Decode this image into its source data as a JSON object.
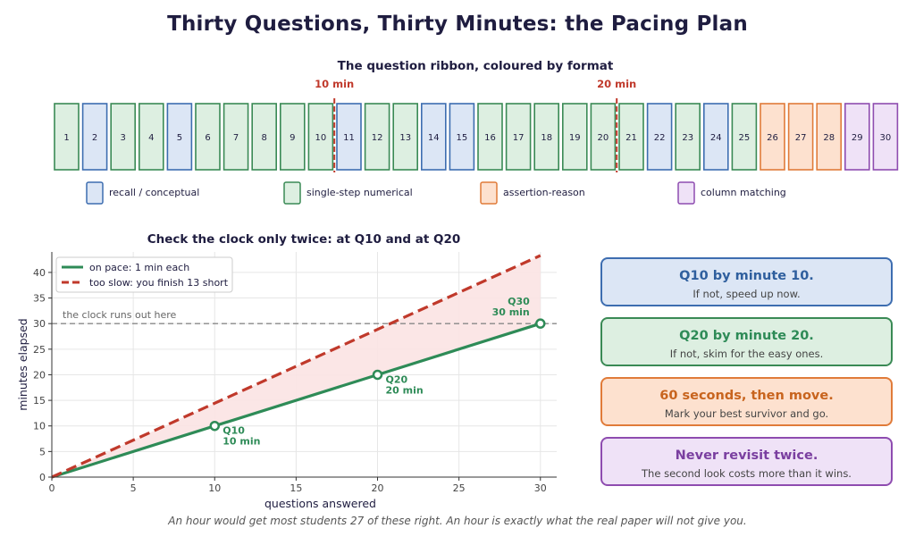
{
  "title": "Thirty Questions, Thirty Minutes: the Pacing Plan",
  "ribbon": {
    "title": "The question ribbon, coloured by format",
    "questions": [
      {
        "label": "1",
        "format": "numerical"
      },
      {
        "label": "2",
        "format": "recall"
      },
      {
        "label": "3",
        "format": "numerical"
      },
      {
        "label": "4",
        "format": "numerical"
      },
      {
        "label": "5",
        "format": "recall"
      },
      {
        "label": "6",
        "format": "numerical"
      },
      {
        "label": "7",
        "format": "numerical"
      },
      {
        "label": "8",
        "format": "numerical"
      },
      {
        "label": "9",
        "format": "numerical"
      },
      {
        "label": "10",
        "format": "numerical"
      },
      {
        "label": "11",
        "format": "recall"
      },
      {
        "label": "12",
        "format": "numerical"
      },
      {
        "label": "13",
        "format": "numerical"
      },
      {
        "label": "14",
        "format": "recall"
      },
      {
        "label": "15",
        "format": "recall"
      },
      {
        "label": "16",
        "format": "numerical"
      },
      {
        "label": "17",
        "format": "numerical"
      },
      {
        "label": "18",
        "format": "numerical"
      },
      {
        "label": "19",
        "format": "numerical"
      },
      {
        "label": "20",
        "format": "numerical"
      },
      {
        "label": "21",
        "format": "numerical"
      },
      {
        "label": "22",
        "format": "recall"
      },
      {
        "label": "23",
        "format": "numerical"
      },
      {
        "label": "24",
        "format": "recall"
      },
      {
        "label": "25",
        "format": "numerical"
      },
      {
        "label": "26",
        "format": "assertion"
      },
      {
        "label": "27",
        "format": "assertion"
      },
      {
        "label": "28",
        "format": "assertion"
      },
      {
        "label": "29",
        "format": "matching"
      },
      {
        "label": "30",
        "format": "matching"
      }
    ],
    "markers": [
      {
        "label": "10 min",
        "after_question": 10
      },
      {
        "label": "20 min",
        "after_question": 20
      }
    ],
    "legend": [
      {
        "key": "recall",
        "label": "recall / conceptual"
      },
      {
        "key": "numerical",
        "label": "single-step numerical"
      },
      {
        "key": "assertion",
        "label": "assertion-reason"
      },
      {
        "key": "matching",
        "label": "column matching"
      }
    ],
    "formats": {
      "recall": {
        "fill": "#dce6f5",
        "stroke": "#3d6db0"
      },
      "numerical": {
        "fill": "#ddefe1",
        "stroke": "#3a8a55"
      },
      "assertion": {
        "fill": "#fde1cf",
        "stroke": "#e07b39"
      },
      "matching": {
        "fill": "#efe2f7",
        "stroke": "#8e4cb0"
      }
    },
    "marker_color": "#c0392b"
  },
  "chart_data": {
    "type": "line",
    "title": "Check the clock only twice: at Q10 and at Q20",
    "xlabel": "questions answered",
    "ylabel": "minutes elapsed",
    "xlim": [
      0,
      31
    ],
    "ylim": [
      0,
      44
    ],
    "xticks": [
      0,
      5,
      10,
      15,
      20,
      25,
      30
    ],
    "yticks": [
      0,
      5,
      10,
      15,
      20,
      25,
      30,
      35,
      40
    ],
    "grid": true,
    "legend_position": "top-left",
    "series": [
      {
        "name": "on pace: 1 min each",
        "x": [
          0,
          30
        ],
        "y": [
          0,
          30
        ],
        "color": "#2e8b57",
        "style": "solid"
      },
      {
        "name": "too slow: you finish 13 short",
        "x": [
          0,
          30
        ],
        "y": [
          0,
          43.3
        ],
        "color": "#c0392b",
        "style": "dashed"
      }
    ],
    "checkpoints": [
      {
        "x": 10,
        "y": 10,
        "label_q": "Q10",
        "label_t": "10 min"
      },
      {
        "x": 20,
        "y": 20,
        "label_q": "Q20",
        "label_t": "20 min"
      },
      {
        "x": 30,
        "y": 30,
        "label_q": "Q30",
        "label_t": "30 min"
      }
    ],
    "limit": {
      "y": 30,
      "label": "the clock runs out here"
    },
    "shade_color": "#fbe3e3"
  },
  "cards": [
    {
      "head": "Q10 by minute 10.",
      "sub": "If not, speed up now.",
      "fill": "#dce6f5",
      "stroke": "#3d6db0",
      "text": "#2f5f9e"
    },
    {
      "head": "Q20 by minute 20.",
      "sub": "If not, skim for the easy ones.",
      "fill": "#ddefe1",
      "stroke": "#3a8a55",
      "text": "#2e8b57"
    },
    {
      "head": "60 seconds, then move.",
      "sub": "Mark your best survivor and go.",
      "fill": "#fde1cf",
      "stroke": "#e07b39",
      "text": "#c8641e"
    },
    {
      "head": "Never revisit twice.",
      "sub": "The second look costs more than it wins.",
      "fill": "#efe2f7",
      "stroke": "#8e4cb0",
      "text": "#7a3fa0"
    }
  ],
  "footer": "An hour would get most students 27 of these right. An hour is exactly what the real paper will not give you."
}
